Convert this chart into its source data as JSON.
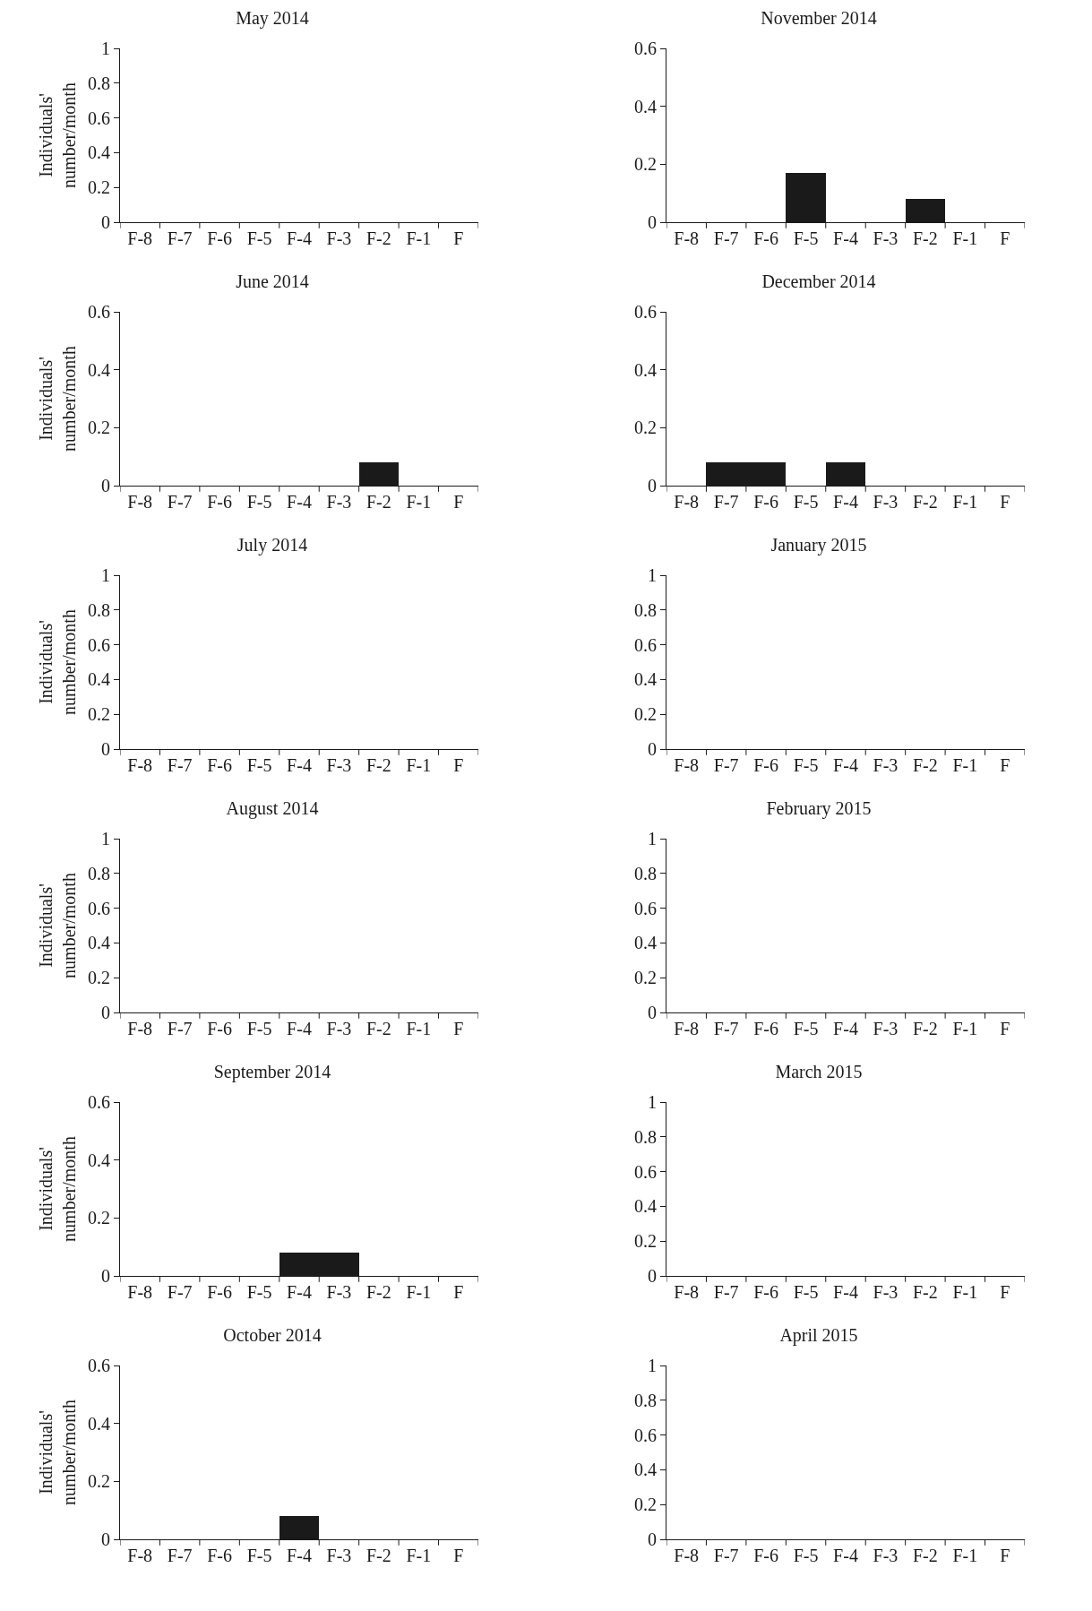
{
  "chart_data": [
    {
      "type": "bar",
      "title": "May 2014",
      "ylabel": "Individuals'\nnumber/month",
      "categories": [
        "F-8",
        "F-7",
        "F-6",
        "F-5",
        "F-4",
        "F-3",
        "F-2",
        "F-1",
        "F"
      ],
      "values": [
        0,
        0,
        0,
        0,
        0,
        0,
        0,
        0,
        0
      ],
      "color": "#1a1a1a",
      "ylim": [
        0,
        1
      ],
      "yticks": [
        0,
        0.2,
        0.4,
        0.6,
        0.8,
        1
      ]
    },
    {
      "type": "bar",
      "title": "November 2014",
      "categories": [
        "F-8",
        "F-7",
        "F-6",
        "F-5",
        "F-4",
        "F-3",
        "F-2",
        "F-1",
        "F"
      ],
      "values": [
        0,
        0,
        0,
        0.17,
        0,
        0,
        0.08,
        0,
        0
      ],
      "color": "#1a1a1a",
      "ylim": [
        0,
        0.6
      ],
      "yticks": [
        0,
        0.2,
        0.4,
        0.6
      ]
    },
    {
      "type": "bar",
      "title": "June 2014",
      "ylabel": "Individuals'\nnumber/month",
      "categories": [
        "F-8",
        "F-7",
        "F-6",
        "F-5",
        "F-4",
        "F-3",
        "F-2",
        "F-1",
        "F"
      ],
      "values": [
        0,
        0,
        0,
        0,
        0,
        0,
        0.08,
        0,
        0
      ],
      "color": "#1a1a1a",
      "ylim": [
        0,
        0.6
      ],
      "yticks": [
        0,
        0.2,
        0.4,
        0.6
      ]
    },
    {
      "type": "bar",
      "title": "December 2014",
      "categories": [
        "F-8",
        "F-7",
        "F-6",
        "F-5",
        "F-4",
        "F-3",
        "F-2",
        "F-1",
        "F"
      ],
      "values": [
        0,
        0.08,
        0.08,
        0,
        0.08,
        0,
        0,
        0,
        0
      ],
      "color": "#1a1a1a",
      "ylim": [
        0,
        0.6
      ],
      "yticks": [
        0,
        0.2,
        0.4,
        0.6
      ]
    },
    {
      "type": "bar",
      "title": "July 2014",
      "ylabel": "Individuals'\nnumber/month",
      "categories": [
        "F-8",
        "F-7",
        "F-6",
        "F-5",
        "F-4",
        "F-3",
        "F-2",
        "F-1",
        "F"
      ],
      "values": [
        0,
        0,
        0,
        0,
        0,
        0,
        0,
        0,
        0
      ],
      "color": "#1a1a1a",
      "ylim": [
        0,
        1
      ],
      "yticks": [
        0,
        0.2,
        0.4,
        0.6,
        0.8,
        1
      ]
    },
    {
      "type": "bar",
      "title": "January 2015",
      "categories": [
        "F-8",
        "F-7",
        "F-6",
        "F-5",
        "F-4",
        "F-3",
        "F-2",
        "F-1",
        "F"
      ],
      "values": [
        0,
        0,
        0,
        0,
        0,
        0,
        0,
        0,
        0
      ],
      "color": "#1a1a1a",
      "ylim": [
        0,
        1
      ],
      "yticks": [
        0,
        0.2,
        0.4,
        0.6,
        0.8,
        1
      ]
    },
    {
      "type": "bar",
      "title": "August 2014",
      "ylabel": "Individuals'\nnumber/month",
      "categories": [
        "F-8",
        "F-7",
        "F-6",
        "F-5",
        "F-4",
        "F-3",
        "F-2",
        "F-1",
        "F"
      ],
      "values": [
        0,
        0,
        0,
        0,
        0,
        0,
        0,
        0,
        0
      ],
      "color": "#1a1a1a",
      "ylim": [
        0,
        1
      ],
      "yticks": [
        0,
        0.2,
        0.4,
        0.6,
        0.8,
        1
      ]
    },
    {
      "type": "bar",
      "title": "February 2015",
      "categories": [
        "F-8",
        "F-7",
        "F-6",
        "F-5",
        "F-4",
        "F-3",
        "F-2",
        "F-1",
        "F"
      ],
      "values": [
        0,
        0,
        0,
        0,
        0,
        0,
        0,
        0,
        0
      ],
      "color": "#1a1a1a",
      "ylim": [
        0,
        1
      ],
      "yticks": [
        0,
        0.2,
        0.4,
        0.6,
        0.8,
        1
      ]
    },
    {
      "type": "bar",
      "title": "September 2014",
      "ylabel": "Individuals'\nnumber/month",
      "categories": [
        "F-8",
        "F-7",
        "F-6",
        "F-5",
        "F-4",
        "F-3",
        "F-2",
        "F-1",
        "F"
      ],
      "values": [
        0,
        0,
        0,
        0,
        0.08,
        0.08,
        0,
        0,
        0
      ],
      "color": "#1a1a1a",
      "ylim": [
        0,
        0.6
      ],
      "yticks": [
        0,
        0.2,
        0.4,
        0.6
      ]
    },
    {
      "type": "bar",
      "title": "March 2015",
      "categories": [
        "F-8",
        "F-7",
        "F-6",
        "F-5",
        "F-4",
        "F-3",
        "F-2",
        "F-1",
        "F"
      ],
      "values": [
        0,
        0,
        0,
        0,
        0,
        0,
        0,
        0,
        0
      ],
      "color": "#1a1a1a",
      "ylim": [
        0,
        1
      ],
      "yticks": [
        0,
        0.2,
        0.4,
        0.6,
        0.8,
        1
      ]
    },
    {
      "type": "bar",
      "title": "October 2014",
      "ylabel": "Individuals'\nnumber/month",
      "categories": [
        "F-8",
        "F-7",
        "F-6",
        "F-5",
        "F-4",
        "F-3",
        "F-2",
        "F-1",
        "F"
      ],
      "values": [
        0,
        0,
        0,
        0,
        0.08,
        0,
        0,
        0,
        0
      ],
      "color": "#1a1a1a",
      "ylim": [
        0,
        0.6
      ],
      "yticks": [
        0,
        0.2,
        0.4,
        0.6
      ]
    },
    {
      "type": "bar",
      "title": "April 2015",
      "categories": [
        "F-8",
        "F-7",
        "F-6",
        "F-5",
        "F-4",
        "F-3",
        "F-2",
        "F-1",
        "F"
      ],
      "values": [
        0,
        0,
        0,
        0,
        0,
        0,
        0,
        0,
        0
      ],
      "color": "#1a1a1a",
      "ylim": [
        0,
        1
      ],
      "yticks": [
        0,
        0.2,
        0.4,
        0.6,
        0.8,
        1
      ]
    }
  ]
}
